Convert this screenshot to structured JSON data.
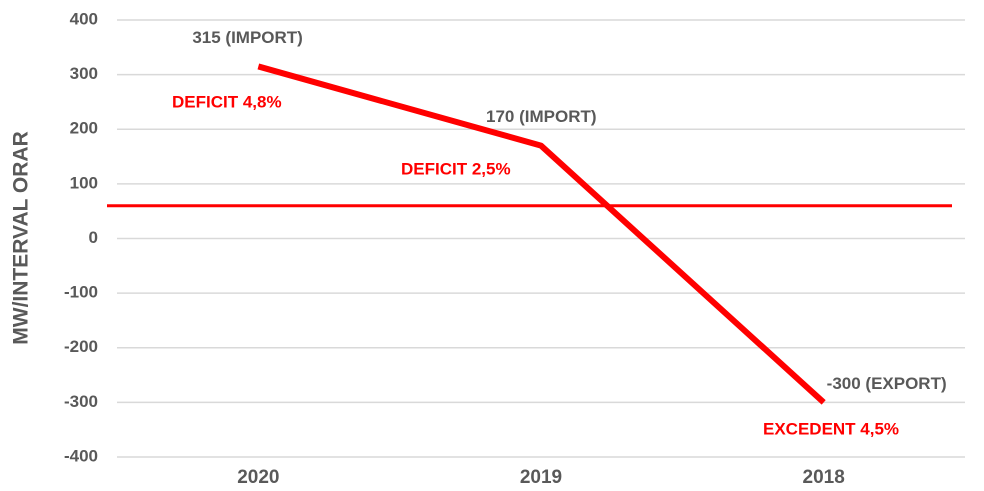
{
  "chart_data": {
    "type": "line",
    "y_axis_label": "MW/INTERVAL ORAR",
    "categories": [
      "2020",
      "2019",
      "2018"
    ],
    "series": [
      {
        "name": "MW/INTERVAL ORAR",
        "color": "#ff0000",
        "values": [
          315,
          170,
          -300
        ],
        "value_labels": [
          "315 (IMPORT)",
          "170 (IMPORT)",
          "-300 (EXPORT)"
        ]
      }
    ],
    "annotations": [
      "DEFICIT 4,8%",
      "DEFICIT 2,5%",
      "EXCEDENT 4,5%"
    ],
    "annotation_color": "#ff0000",
    "reference_line": {
      "value": 60,
      "color": "#ff0000"
    },
    "ylim": [
      -400,
      400
    ],
    "yticks": [
      -400,
      -300,
      -200,
      -100,
      0,
      100,
      200,
      300,
      400
    ],
    "grid": true
  }
}
